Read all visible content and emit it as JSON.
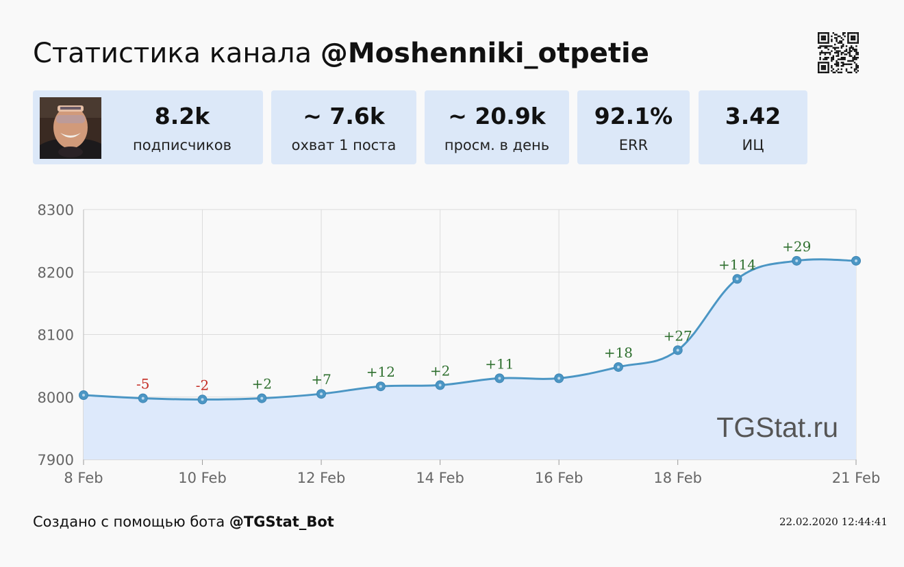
{
  "header": {
    "title_prefix": "Статистика канала",
    "channel": "@Moshenniki_otpetie"
  },
  "qr_icon": "qr-code-icon",
  "stats": [
    {
      "value": "8.2k",
      "label": "подписчиков"
    },
    {
      "value": "~ 7.6k",
      "label": "охват 1 поста"
    },
    {
      "value": "~ 20.9k",
      "label": "просм. в день"
    },
    {
      "value": "92.1%",
      "label": "ERR"
    },
    {
      "value": "3.42",
      "label": "ИЦ"
    }
  ],
  "chart_data": {
    "type": "area",
    "x": [
      "2020-02-08",
      "2020-02-09",
      "2020-02-10",
      "2020-02-11",
      "2020-02-12",
      "2020-02-13",
      "2020-02-14",
      "2020-02-15",
      "2020-02-16",
      "2020-02-17",
      "2020-02-18",
      "2020-02-19",
      "2020-02-20",
      "2020-02-21"
    ],
    "values": [
      8003,
      7998,
      7996,
      7998,
      8005,
      8017,
      8019,
      8030,
      8030,
      8048,
      8075,
      8189,
      8218,
      8218
    ],
    "point_labels": [
      "",
      "-5",
      "-2",
      "+2",
      "+7",
      "+12",
      "+2",
      "+11",
      "",
      "+18",
      "+27",
      "+114",
      "+29",
      ""
    ],
    "x_tick_labels": [
      "8 Feb",
      "10 Feb",
      "12 Feb",
      "14 Feb",
      "16 Feb",
      "18 Feb",
      "21 Feb"
    ],
    "x_tick_dates": [
      "2020-02-08",
      "2020-02-10",
      "2020-02-12",
      "2020-02-14",
      "2020-02-16",
      "2020-02-18",
      "2020-02-21"
    ],
    "y_ticks": [
      7900,
      8000,
      8100,
      8200,
      8300
    ],
    "ylim": [
      7900,
      8300
    ],
    "grid": true,
    "legend": "none",
    "watermark": "TGStat.ru",
    "line_color": "#4b96c4",
    "fill_color": "#dde9fb",
    "positive_label_color": "#2e6f2e",
    "negative_label_color": "#c42a22"
  },
  "footer": {
    "prefix": "Создано с помощью бота",
    "bot": "@TGStat_Bot",
    "timestamp": "22.02.2020 12:44:41"
  }
}
